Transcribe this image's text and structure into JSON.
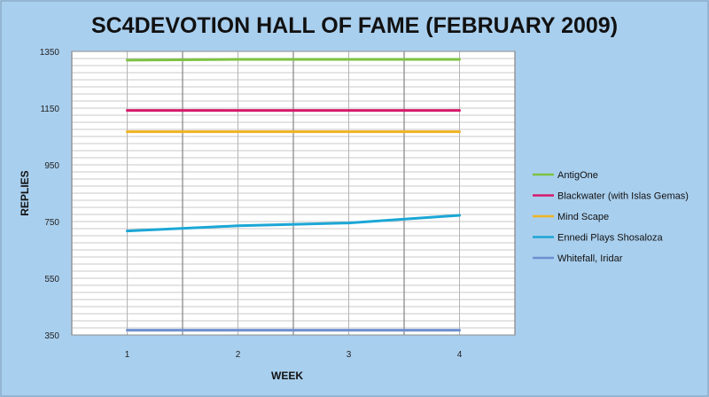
{
  "chart_data": {
    "type": "line",
    "title": "SC4DEVOTION HALL OF FAME (FEBRUARY 2009)",
    "xlabel": "WEEK",
    "ylabel": "REPLIES",
    "x": [
      1,
      2,
      3,
      4
    ],
    "x_tick_labels": [
      "1",
      "2",
      "3",
      "4"
    ],
    "ylim": [
      350,
      1350
    ],
    "y_ticks": [
      350,
      550,
      750,
      950,
      1150,
      1350
    ],
    "y_tick_labels": [
      "350",
      "550",
      "750",
      "950",
      "1150",
      "1350"
    ],
    "grid": true,
    "legend_position": "right",
    "series": [
      {
        "name": "AntigOne",
        "color": "#7dc242",
        "values": [
          1319,
          1322,
          1322,
          1322
        ]
      },
      {
        "name": "Blackwater (with Islas Gemas)",
        "color": "#d6196b",
        "values": [
          1142,
          1142,
          1142,
          1142
        ]
      },
      {
        "name": "Mind Scape",
        "color": "#f0b323",
        "values": [
          1067,
          1067,
          1067,
          1067
        ]
      },
      {
        "name": "Ennedi Plays Shosaloza",
        "color": "#1ba7d6",
        "values": [
          717,
          735,
          745,
          772
        ]
      },
      {
        "name": "Whitefall, Iridar",
        "color": "#6f8fd0",
        "values": [
          367,
          367,
          367,
          367
        ]
      }
    ]
  }
}
